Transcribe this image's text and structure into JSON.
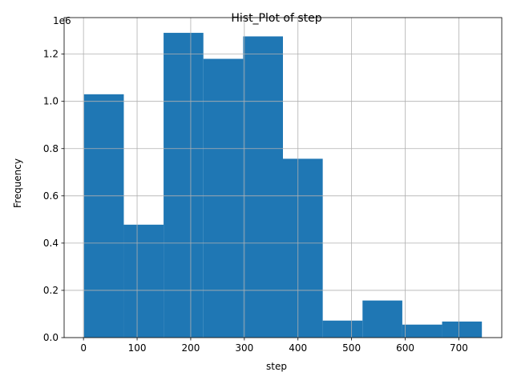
{
  "chart_data": {
    "type": "bar",
    "title": "Hist_Plot of step",
    "xlabel": "step",
    "ylabel": "Frequency",
    "y_offset_label": "1e6",
    "grid": true,
    "bar_color": "#1f77b4",
    "bins": [
      {
        "x0": 1,
        "x1": 75.2,
        "value": 1030000
      },
      {
        "x0": 75.2,
        "x1": 149.4,
        "value": 478000
      },
      {
        "x0": 149.4,
        "x1": 223.6,
        "value": 1290000
      },
      {
        "x0": 223.6,
        "x1": 297.8,
        "value": 1180000
      },
      {
        "x0": 297.8,
        "x1": 372.0,
        "value": 1275000
      },
      {
        "x0": 372.0,
        "x1": 446.2,
        "value": 757000
      },
      {
        "x0": 446.2,
        "x1": 520.4,
        "value": 72000
      },
      {
        "x0": 520.4,
        "x1": 594.6,
        "value": 157000
      },
      {
        "x0": 594.6,
        "x1": 668.8,
        "value": 55000
      },
      {
        "x0": 668.8,
        "x1": 743,
        "value": 68000
      }
    ],
    "xlim": [
      -36.1,
      780.1
    ],
    "ylim": [
      0,
      1354500
    ],
    "x_ticks": [
      0,
      100,
      200,
      300,
      400,
      500,
      600,
      700
    ],
    "x_tick_labels": [
      "0",
      "100",
      "200",
      "300",
      "400",
      "500",
      "600",
      "700"
    ],
    "y_ticks": [
      0,
      200000,
      400000,
      600000,
      800000,
      1000000,
      1200000
    ],
    "y_tick_labels": [
      "0.0",
      "0.2",
      "0.4",
      "0.6",
      "0.8",
      "1.0",
      "1.2"
    ]
  }
}
